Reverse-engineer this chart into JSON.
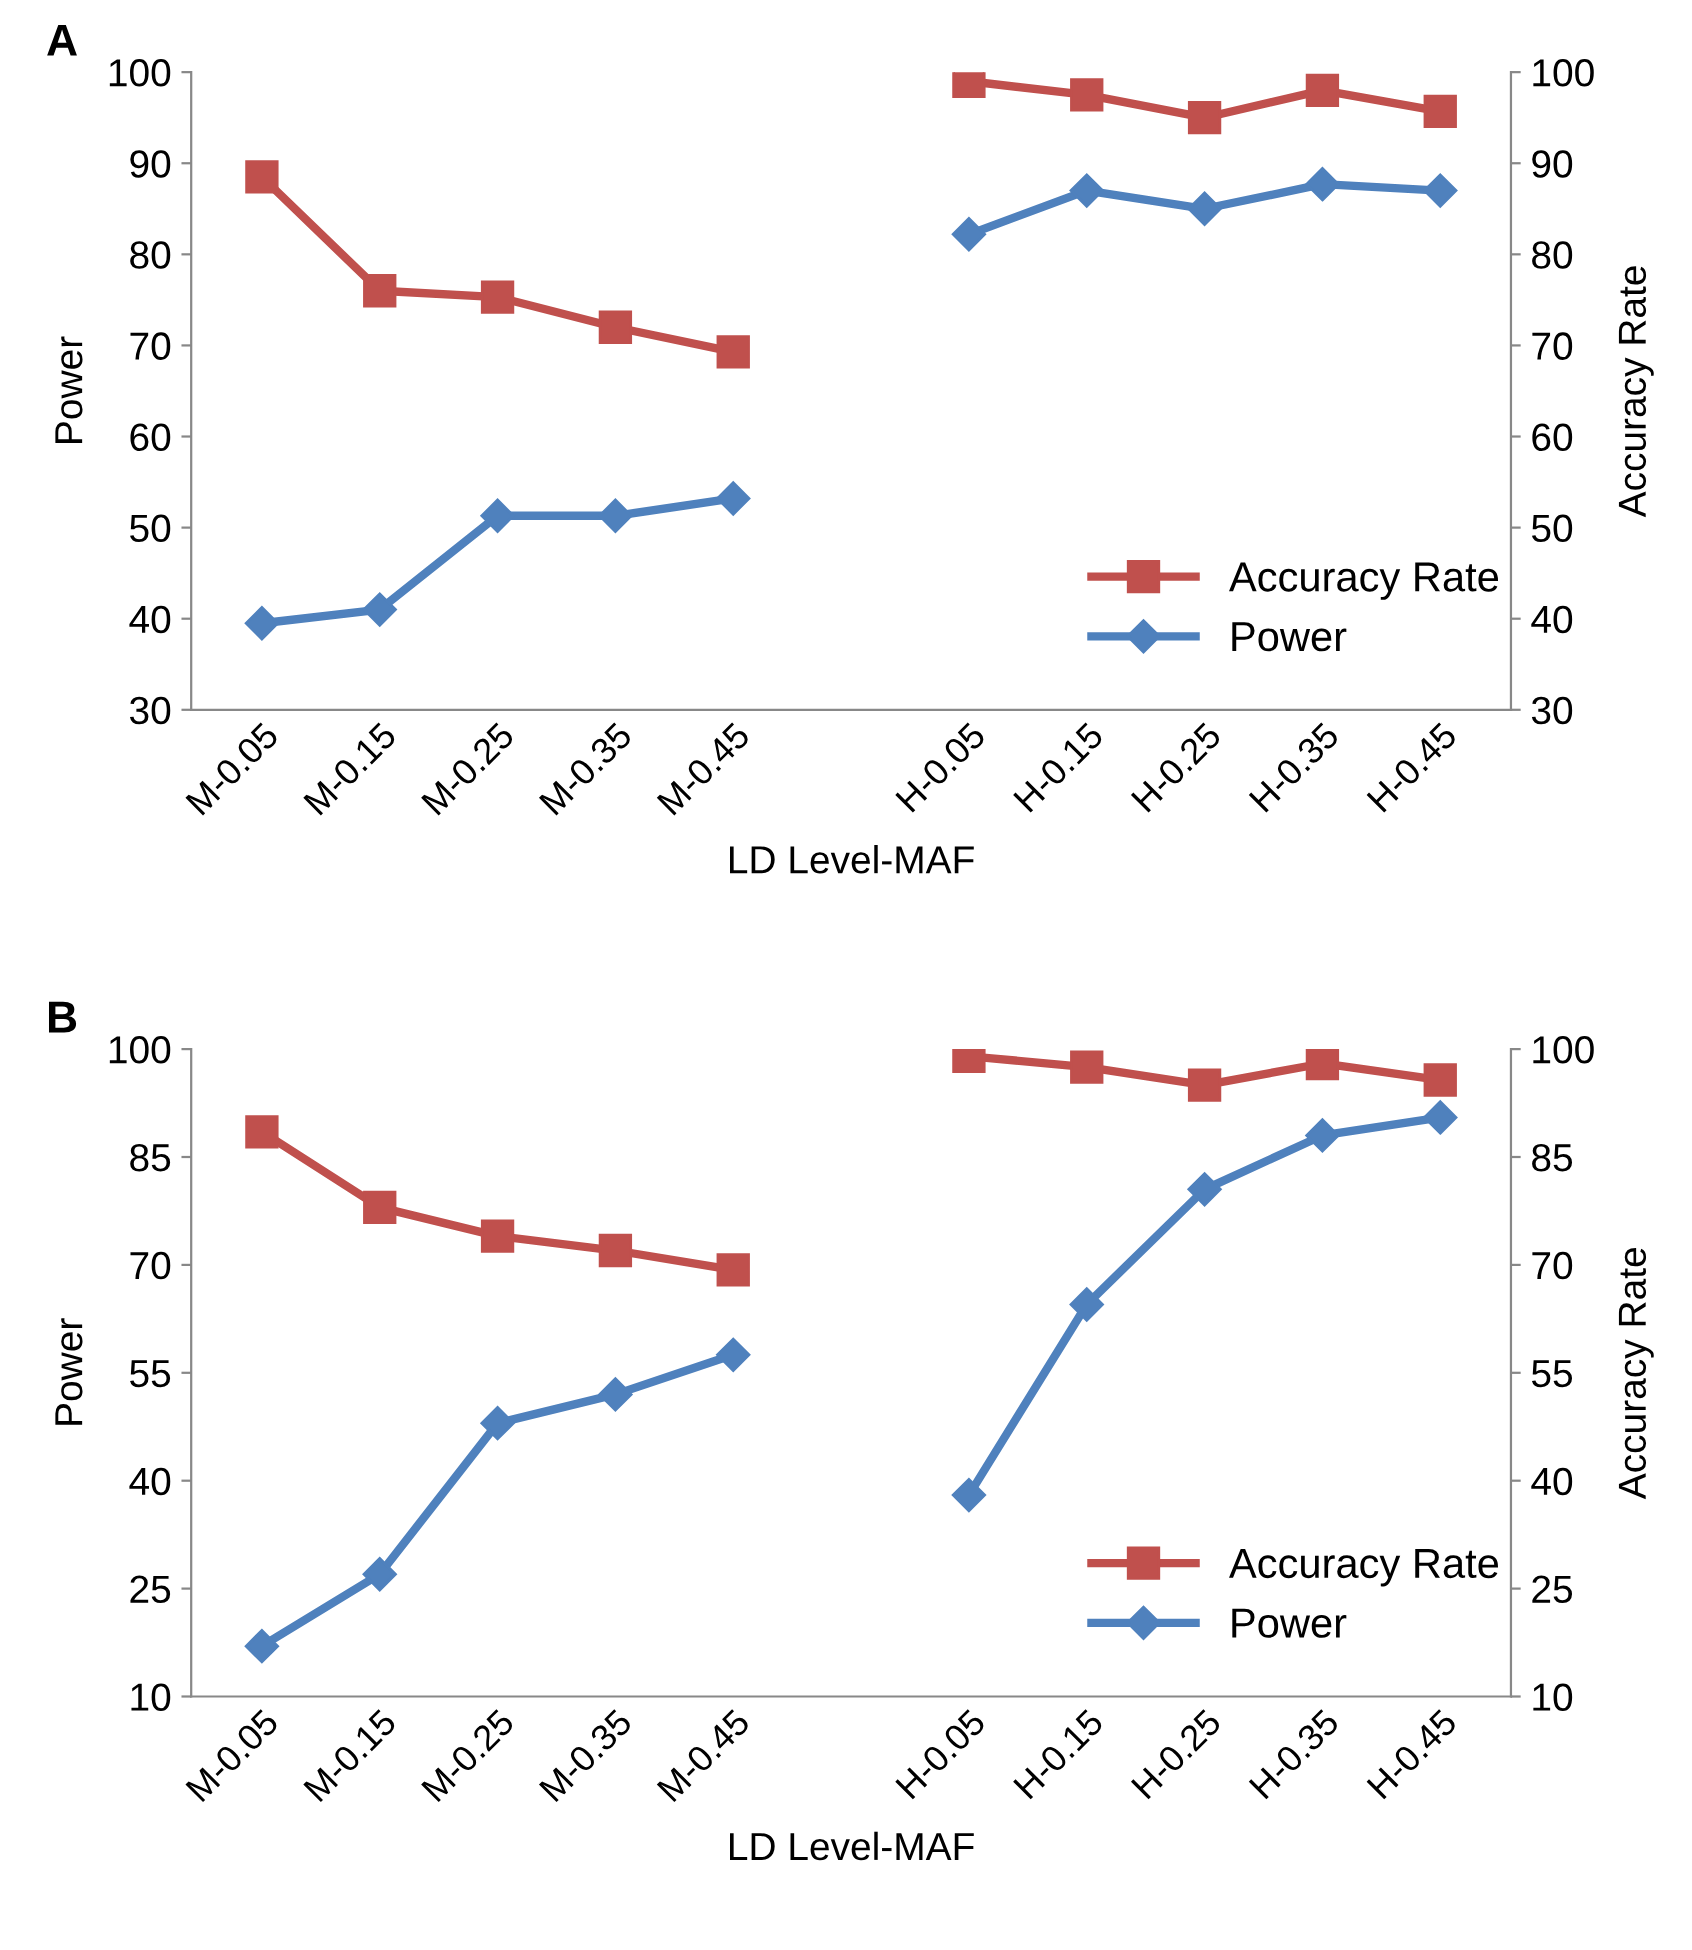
{
  "chart_data": [
    {
      "type": "line",
      "title": "A",
      "xlabel": "LD Level-MAF",
      "ylabel": "Power",
      "y2label": "Accuracy Rate",
      "categories": [
        "M-0.05",
        "M-0.15",
        "M-0.25",
        "M-0.35",
        "M-0.45",
        null,
        "H-0.05",
        "H-0.15",
        "H-0.25",
        "H-0.35",
        "H-0.45"
      ],
      "series": [
        {
          "name": "Accuracy Rate",
          "color": "#c0504d",
          "marker": "square",
          "values": [
            88.5,
            76,
            75.3,
            72,
            69.3,
            null,
            99,
            97.5,
            95,
            98,
            95.7
          ]
        },
        {
          "name": "Power",
          "color": "#4f81bd",
          "marker": "diamond",
          "values": [
            39.5,
            41,
            51.3,
            51.3,
            53.2,
            null,
            82.2,
            87,
            85,
            87.7,
            87
          ]
        }
      ],
      "ylim": [
        30,
        100
      ],
      "yticks": [
        30,
        40,
        50,
        60,
        70,
        80,
        90,
        100
      ],
      "y2lim": [
        30,
        100
      ],
      "y2ticks": [
        30,
        40,
        50,
        60,
        70,
        80,
        90,
        100
      ],
      "legend": "bottom right",
      "grid": false,
      "line_style": "solid"
    },
    {
      "type": "line",
      "title": "B",
      "xlabel": "LD Level-MAF",
      "ylabel": "Power",
      "y2label": "Accuracy Rate",
      "categories": [
        "M-0.05",
        "M-0.15",
        "M-0.25",
        "M-0.35",
        "M-0.45",
        null,
        "H-0.05",
        "H-0.15",
        "H-0.25",
        "H-0.35",
        "H-0.45"
      ],
      "series": [
        {
          "name": "Accuracy Rate",
          "color": "#c0504d",
          "marker": "square",
          "values": [
            88.5,
            78,
            74,
            72,
            69.3,
            null,
            99,
            97.5,
            95,
            98,
            95.7
          ]
        },
        {
          "name": "Power",
          "color": "#4f81bd",
          "marker": "diamond",
          "values": [
            17,
            27,
            48,
            52,
            57.5,
            null,
            38,
            64.5,
            80.5,
            88,
            90.5
          ]
        }
      ],
      "ylim": [
        10,
        100
      ],
      "yticks": [
        10,
        25,
        40,
        55,
        70,
        85,
        100
      ],
      "y2lim": [
        10,
        100
      ],
      "y2ticks": [
        10,
        25,
        40,
        55,
        70,
        85,
        100
      ],
      "legend": "bottom right",
      "grid": false,
      "line_style": "solid"
    }
  ]
}
